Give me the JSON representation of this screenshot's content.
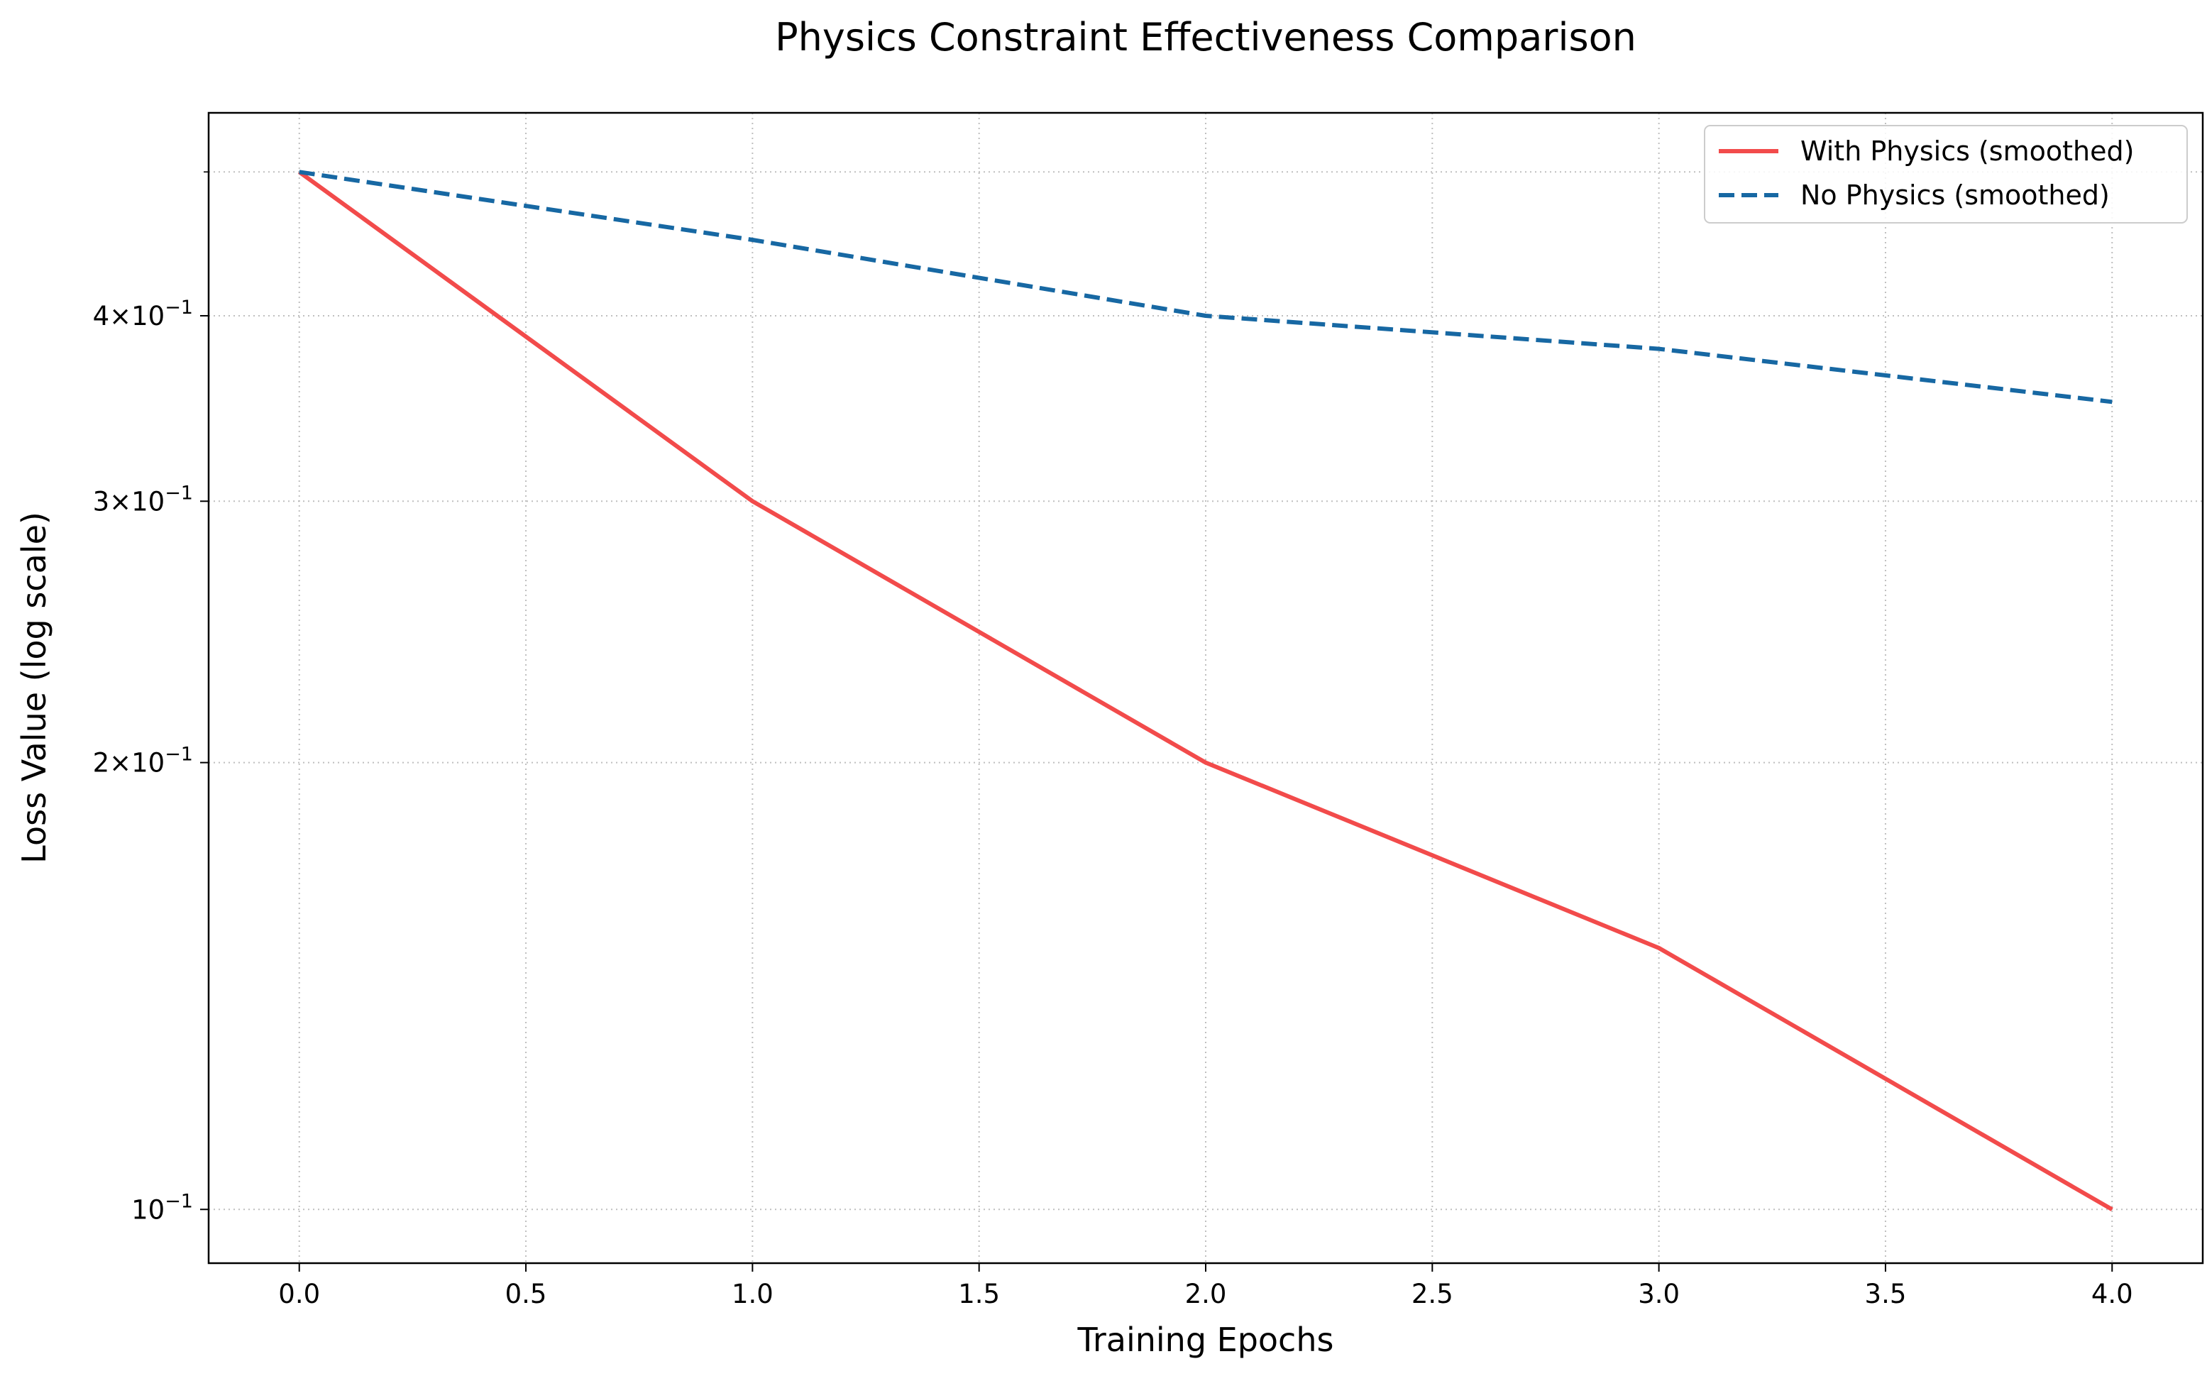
{
  "chart_data": {
    "type": "line",
    "title": "Physics Constraint Effectiveness Comparison",
    "xlabel": "Training Epochs",
    "ylabel": "Loss Value (log scale)",
    "xlim": [
      -0.2,
      4.2
    ],
    "ylim": [
      0.092,
      0.548
    ],
    "yscale": "log",
    "grid": true,
    "legend_position": "top-right",
    "x_ticks": [
      0.0,
      0.5,
      1.0,
      1.5,
      2.0,
      2.5,
      3.0,
      3.5,
      4.0
    ],
    "x_tick_labels": [
      "0.0",
      "0.5",
      "1.0",
      "1.5",
      "2.0",
      "2.5",
      "3.0",
      "3.5",
      "4.0"
    ],
    "y_ticks": [
      {
        "value": 0.1,
        "mantissa": "",
        "exponent": "−1"
      },
      {
        "value": 0.2,
        "mantissa": "2",
        "exponent": "−1"
      },
      {
        "value": 0.3,
        "mantissa": "3",
        "exponent": "−1"
      },
      {
        "value": 0.4,
        "mantissa": "4",
        "exponent": "−1"
      }
    ],
    "x": [
      0,
      1,
      2,
      3,
      4
    ],
    "series": [
      {
        "name": "With Physics (smoothed)",
        "color": "#f24b4b",
        "dash": "solid",
        "values": [
          0.5,
          0.3,
          0.2,
          0.15,
          0.1
        ]
      },
      {
        "name": "No Physics (smoothed)",
        "color": "#1768a3",
        "dash": "dashed",
        "values": [
          0.5,
          0.45,
          0.4,
          0.38,
          0.35
        ]
      }
    ]
  }
}
